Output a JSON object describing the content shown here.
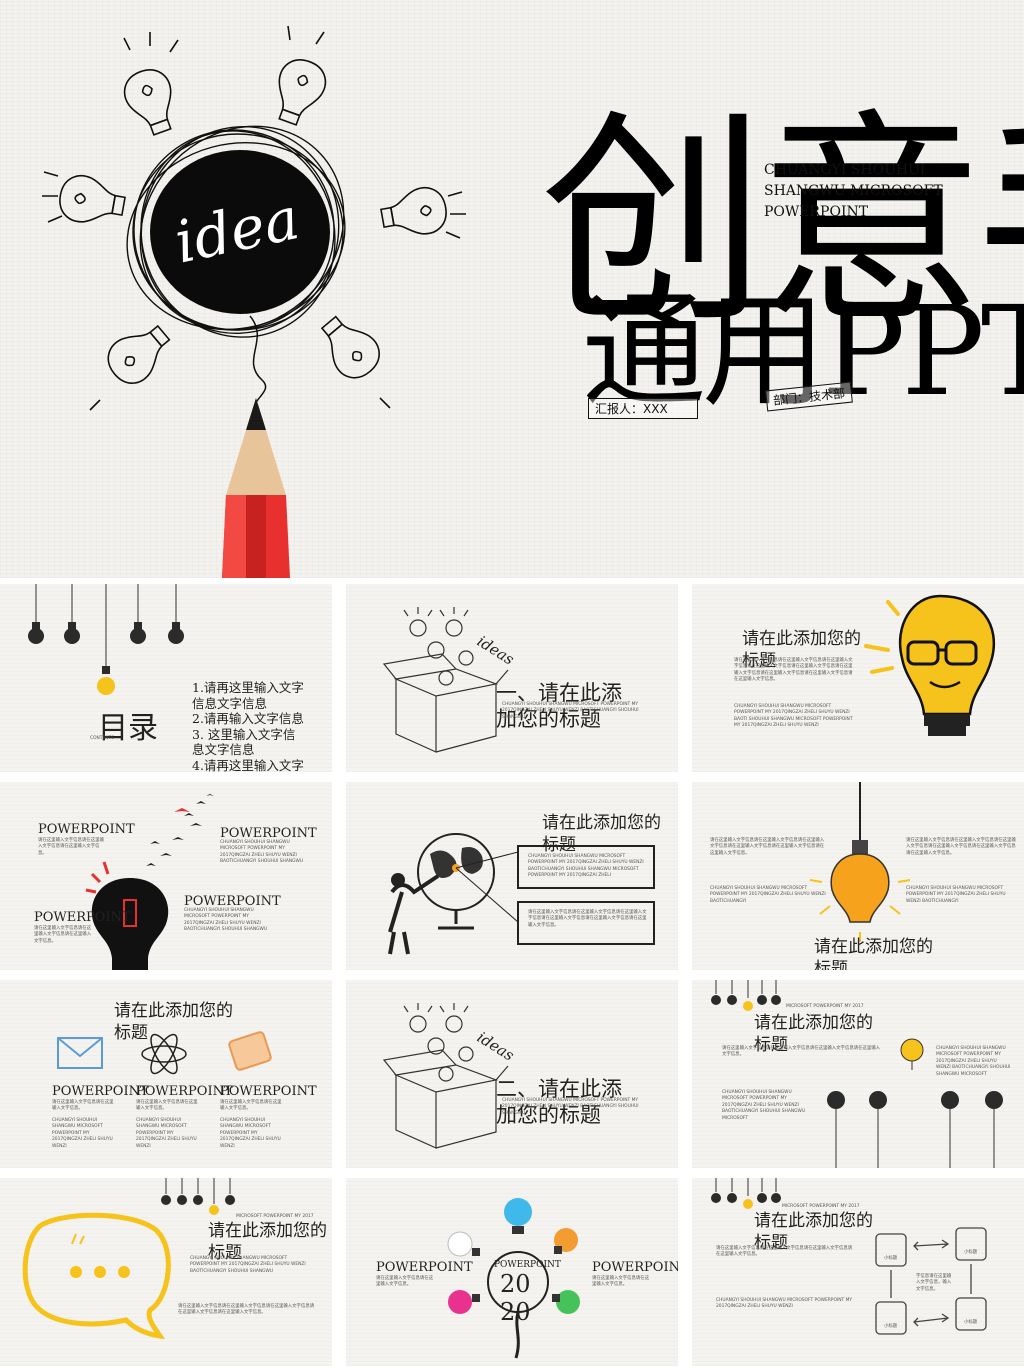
{
  "hero": {
    "title_line1": "创意手绘",
    "title_line2": "通用PPT",
    "subtitle_line1": "CHUANGYI SHOUHUI",
    "subtitle_line2": "SHANGWU MICROSOFT",
    "subtitle_line3": "POWERPOINT",
    "idea_text": "idea",
    "reporter": "汇报人：XXX",
    "department": "部门：技术部"
  },
  "colors": {
    "accent_red": "#e8312f",
    "accent_yellow": "#f6c21c",
    "ink": "#111111",
    "paper": "#f4f3ef"
  },
  "slides": {
    "toc": {
      "title": "目录",
      "label": "CONTENTS",
      "items": [
        "1.请再这里输入文字",
        "信息文字信息",
        "2.请再输入文字信息",
        "3. 这里输入文字信",
        "息文字信息",
        "4.请再这里输入文字"
      ]
    },
    "section1": {
      "ideas": "ideas",
      "title_line1": "一、请在此添",
      "title_line2": "加您的标题",
      "caption": "CHUANGYI SHOUHUI SHANGWU MICROSOFT POWERPOINT MY 2017QINGZAI ZHELI SHUYU WENZI BAOTICHUANGYI SHOUHUI SHANGWU"
    },
    "s3": {
      "title_line1": "请在此添加您的",
      "title_line2": "标题",
      "body1": "请在这里输入文字信息请在这里输入文字信息请在这里输入文字信息请在这里输入文字信息请在这里输入文字信息请在这里输入文字信息请在这里输入文字信息请在这里输入文字信息请在这里输入文字信息。",
      "body2": "CHUANGYI SHOUHUI SHANGWU MICROSOFT POWERPOINT MY 2017QINGZAI ZHELI SHUYU WENZI BAOTI SHOUHUI SHANGWU MICROSOFT POWERPOINT MY 2017QINGZAI ZHELI SHUYU WENZI"
    },
    "s4": {
      "label": "POWERPOINT",
      "body": "请在这里输入文字信息请在这里输入文字信息请在这里输入文字信息。",
      "body_en": "CHUANGYI SHOUHUI SHANGWU MICROSOFT POWERPOINT MY 2017QINGZAI ZHELI SHUYU WENZI BAOTICHUANGYI SHOUHUI SHANGWU"
    },
    "s5": {
      "title_line1": "请在此添加您的",
      "title_line2": "标题",
      "body_en": "CHUANGYI SHOUHUI SHANGWU MICROSOFT POWERPOINT MY 2017QINGZAI ZHELI SHUYU WENZI BAOTICHUANGYI SHOUHUI SHANGWU MICROSOFT POWERPOINT MY 2017QINGZAI ZHELI",
      "body_cn": "请在这里输入文字信息请在这里输入文字信息请在这里输入文字信息请在这里输入文字信息请在这里输入文字信息请在这里输入文字信息。"
    },
    "s6": {
      "title_line1": "请在此添加您的",
      "title_line2": "标题",
      "body_cn": "请在这里输入文字信息请在这里输入文字信息请在这里输入文字信息请在这里输入文字信息请在这里输入文字信息请在这里输入文字信息。",
      "body_en": "CHUANGYI SHOUHUI SHANGWU MICROSOFT POWERPOINT MY 2017QINGZAI ZHELI SHUYU WENZI BAOTICHUANGYI"
    },
    "s7": {
      "title_line1": "请在此添加您的",
      "title_line2": "标题",
      "label": "POWERPOINT",
      "body_cn": "请在这里输入文字信息请在这里输入文字信息。",
      "body_en": "CHUANGYI SHOUHUI SHANGWU MICROSOFT POWERPOINT MY 2017QINGZAI ZHELI SHUYU WENZI"
    },
    "section2": {
      "ideas": "ideas",
      "title_line1": "二、请在此添",
      "title_line2": "加您的标题",
      "caption": "CHUANGYI SHOUHUI SHANGWU MICROSOFT POWERPOINT MY 2017QINGZAI ZHELI SHUYU WENZI BAOTICHUANGYI SHOUHUI SHANGWU"
    },
    "s9": {
      "small": "MICROSOFT POWERPOINT MY 2017",
      "title_line1": "请在此添加您的",
      "title_line2": "标题",
      "body_cn": "请在这里输入文字信息请在这里输入文字信息请在这里输入文字信息请在这里输入文字信息。",
      "body_en": "CHUANGYI SHOUHUI SHANGWU MICROSOFT POWERPOINT MY 2017QINGZAI ZHELI SHUYU WENZI BAOTICHUANGYI SHOUHUI SHANGWU MICROSOFT"
    },
    "s10": {
      "small": "MICROSOFT POWERPOINT MY 2017",
      "title_line1": "请在此添加您的",
      "title_line2": "标题",
      "body_en": "CHUANGYI SHOUHUI SHANGWU MICROSOFT POWERPOINT MY 2017QINGZAI ZHELI SHUYU WENZI BAOTICHUANGYI SHOUHUI SHANGWU",
      "body_cn": "请在这里输入文字信息请在这里输入文字信息请在这里输入文字信息请在这里输入文字信息请在这里输入文字信息。"
    },
    "s11": {
      "label": "POWERPOINT",
      "year": "2020",
      "center_label": "POWERPOINT",
      "body_cn": "请在这里输入文字信息请在这里输入文字信息。"
    },
    "s12": {
      "small": "MICROSOFT POWERPOINT MY 2017",
      "title_line1": "请在此添加您的",
      "title_line2": "标题",
      "body_cn": "请在这里输入文字信息请在这里输入文字信息请在这里输入文字信息请在这里输入文字信息。",
      "body_en": "CHUANGYI SHOUHUI SHANGWU MICROSOFT POWERPOINT MY 2017QINGZAI ZHELI SHUYU WENZI",
      "node_label": "小标题",
      "center_text": "字信息请在这里输入文字信息，输入文字信息。"
    }
  }
}
